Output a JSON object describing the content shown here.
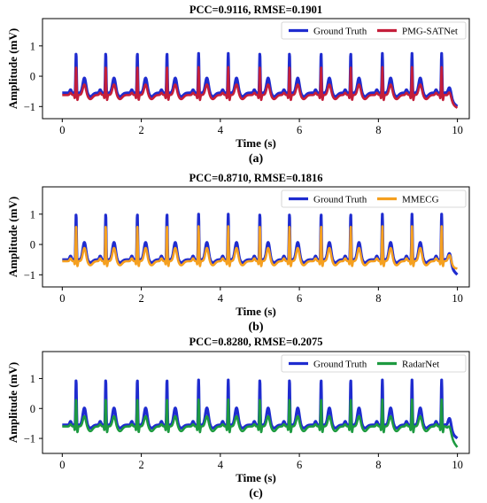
{
  "chart_data": [
    {
      "type": "line",
      "panel_label": "(a)",
      "title": "PCC=0.9116, RMSE=0.1901",
      "xlabel": "Time (s)",
      "ylabel": "Amplitude (mV)",
      "xlim": [
        -0.5,
        10.3
      ],
      "ylim": [
        -1.4,
        1.9
      ],
      "xticks": [
        0,
        2,
        4,
        6,
        8,
        10
      ],
      "yticks": [
        -1,
        0,
        1
      ],
      "legend_position": "top-right",
      "beat_times": [
        0.35,
        1.1,
        1.9,
        2.65,
        3.45,
        4.2,
        5.0,
        5.75,
        6.55,
        7.3,
        8.1,
        8.85,
        9.6
      ],
      "series": [
        {
          "name": "Ground Truth",
          "color": "#1f2ccf",
          "role": "reference",
          "baseline": -0.55,
          "peak": 0.75,
          "trough": -0.82,
          "end_value": -1.0
        },
        {
          "name": "PMG-SATNet",
          "color": "#c41e3a",
          "role": "prediction",
          "baseline": -0.62,
          "peak": 0.3,
          "trough": -0.92,
          "end_value": -1.05
        }
      ]
    },
    {
      "type": "line",
      "panel_label": "(b)",
      "title": "PCC=0.8710, RMSE=0.1816",
      "xlabel": "Time (s)",
      "ylabel": "Amplitude (mV)",
      "xlim": [
        -0.5,
        10.3
      ],
      "ylim": [
        -1.4,
        1.9
      ],
      "xticks": [
        0,
        2,
        4,
        6,
        8,
        10
      ],
      "yticks": [
        -1,
        0,
        1
      ],
      "legend_position": "top-right",
      "beat_times": [
        0.35,
        1.1,
        1.9,
        2.65,
        3.45,
        4.2,
        5.0,
        5.75,
        6.55,
        7.3,
        8.1,
        8.85,
        9.6
      ],
      "series": [
        {
          "name": "Ground Truth",
          "color": "#1f2ccf",
          "role": "reference",
          "baseline": -0.5,
          "peak": 1.0,
          "trough": -0.72,
          "end_value": -1.0
        },
        {
          "name": "MMECG",
          "color": "#f5a020",
          "role": "prediction",
          "baseline": -0.55,
          "peak": 0.6,
          "trough": -0.85,
          "end_value": -0.8
        }
      ]
    },
    {
      "type": "line",
      "panel_label": "(c)",
      "title": "PCC=0.8280, RMSE=0.2075",
      "xlabel": "Time (s)",
      "ylabel": "Amplitude (mV)",
      "xlim": [
        -0.5,
        10.3
      ],
      "ylim": [
        -1.5,
        1.9
      ],
      "xticks": [
        0,
        2,
        4,
        6,
        8,
        10
      ],
      "yticks": [
        -1,
        0,
        1
      ],
      "legend_position": "top-right",
      "beat_times": [
        0.35,
        1.1,
        1.9,
        2.65,
        3.45,
        4.2,
        5.0,
        5.75,
        6.55,
        7.3,
        8.1,
        8.85,
        9.6
      ],
      "series": [
        {
          "name": "Ground Truth",
          "color": "#1f2ccf",
          "role": "reference",
          "baseline": -0.55,
          "peak": 0.95,
          "trough": -0.78,
          "end_value": -1.0
        },
        {
          "name": "RadarNet",
          "color": "#1d9a40",
          "role": "prediction",
          "baseline": -0.6,
          "peak": 0.3,
          "trough": -0.95,
          "end_value": -1.3
        }
      ]
    }
  ]
}
